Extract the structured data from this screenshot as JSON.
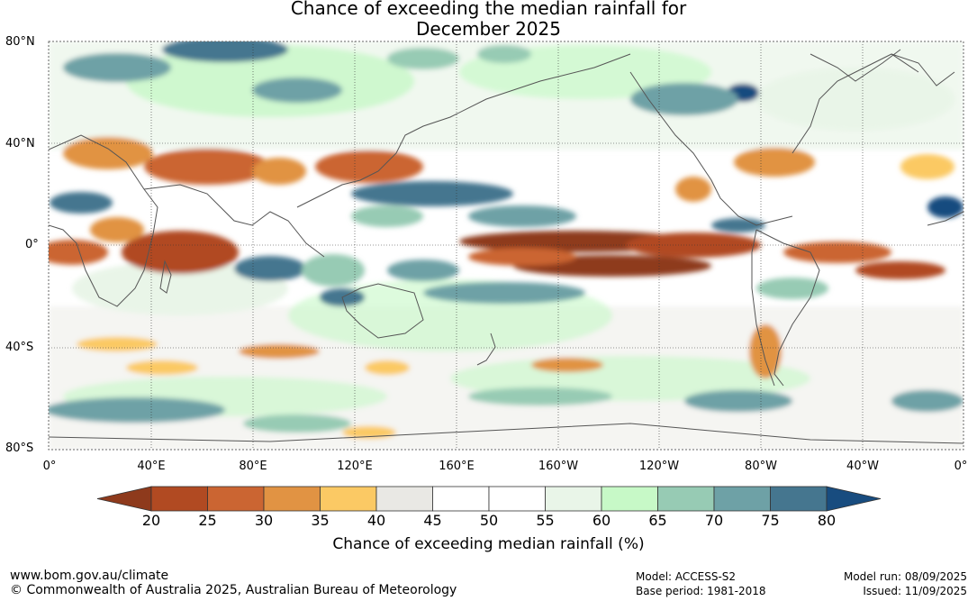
{
  "title": {
    "line1": "Chance of exceeding the median rainfall for",
    "line2": "December 2025"
  },
  "map": {
    "lat_labels": [
      "80°N",
      "40°N",
      "0°",
      "40°S",
      "80°S"
    ],
    "lon_labels": [
      "0°",
      "40°E",
      "80°E",
      "120°E",
      "160°E",
      "160°W",
      "120°W",
      "80°W",
      "40°W",
      "0°"
    ],
    "ocean_color": "#ffffff",
    "coastline_color": "#555555"
  },
  "colorbar": {
    "label": "Chance of exceeding median rainfall (%)",
    "ticks": [
      "20",
      "25",
      "30",
      "35",
      "40",
      "45",
      "50",
      "55",
      "60",
      "65",
      "70",
      "75",
      "80"
    ],
    "colors": [
      "#8e3a1c",
      "#b14a22",
      "#cb6532",
      "#e19343",
      "#fbc964",
      "#e9e8e4",
      "#ffffff",
      "#ffffff",
      "#e9f5e8",
      "#c7f9c7",
      "#97cbb4",
      "#6ea1a6",
      "#45768f",
      "#184c7f"
    ]
  },
  "footer": {
    "website": "www.bom.gov.au/climate",
    "copyright": "© Commonwealth of Australia 2025, Australian Bureau of Meteorology",
    "model": "Model: ACCESS-S2",
    "base_period": "Base period: 1981-2018",
    "model_run": "Model run: 08/09/2025",
    "issued": "Issued: 11/09/2025"
  }
}
